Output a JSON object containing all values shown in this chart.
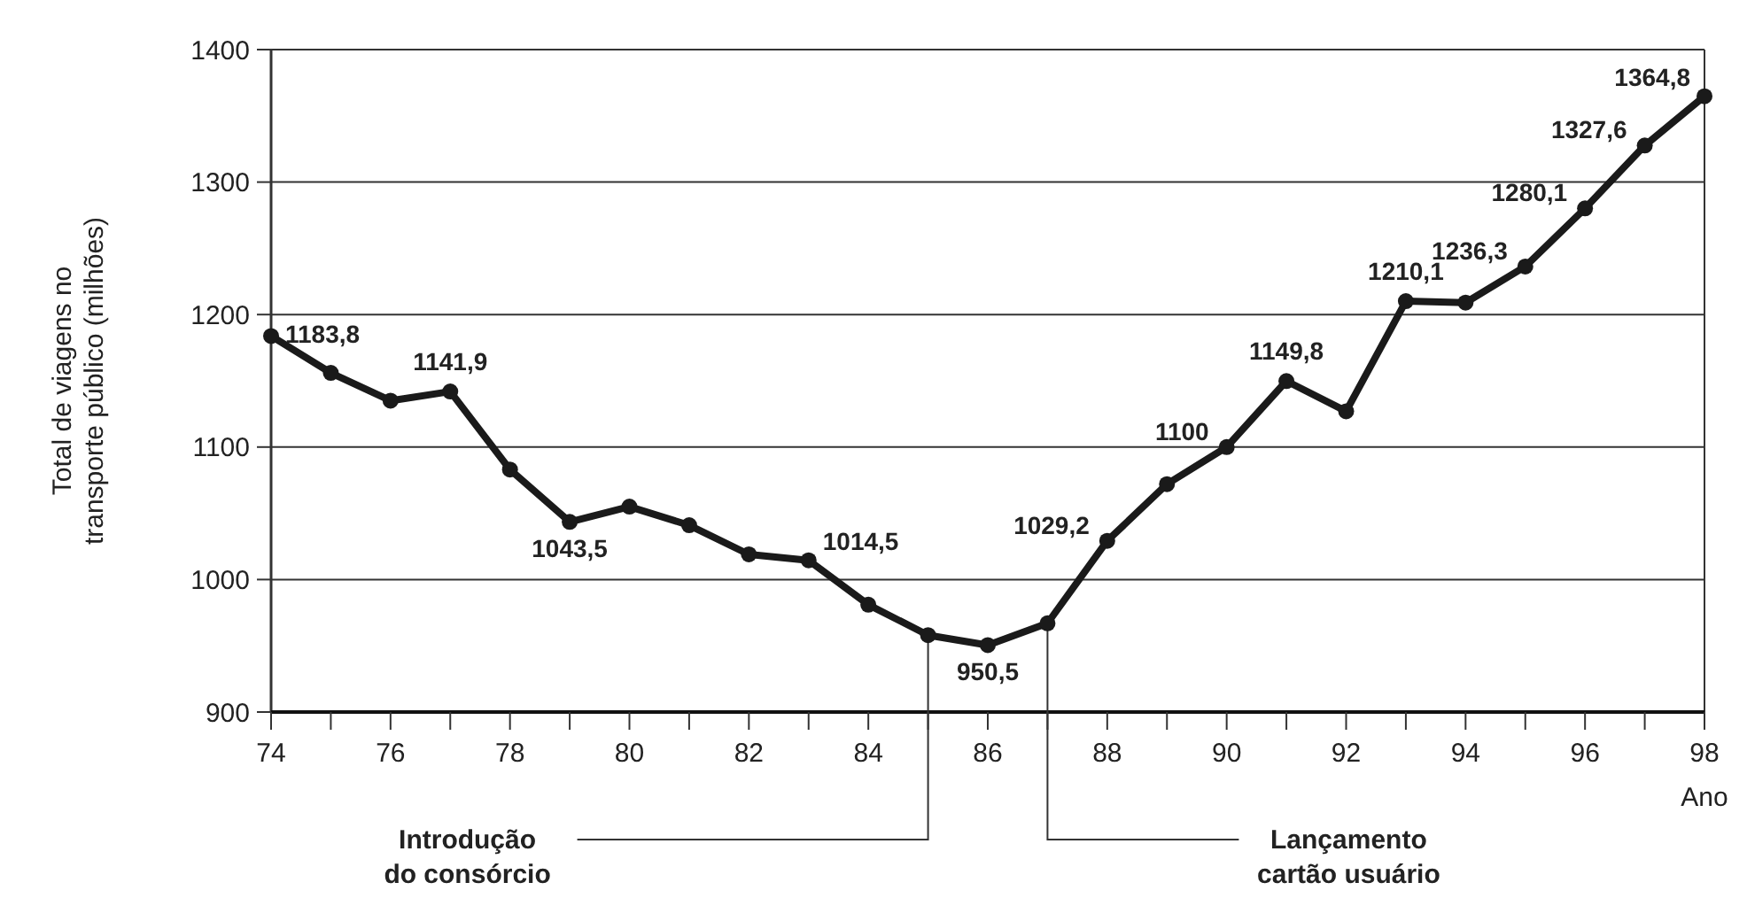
{
  "chart_data": {
    "type": "line",
    "ylabel": "Total de viagens no transporte público (milhões)",
    "xlabel": "Ano",
    "x": [
      74,
      75,
      76,
      77,
      78,
      79,
      80,
      81,
      82,
      83,
      84,
      85,
      86,
      87,
      88,
      89,
      90,
      91,
      92,
      93,
      94,
      95,
      96,
      97,
      98
    ],
    "series": [
      {
        "color": "#1a1a1a",
        "values": [
          1183.8,
          1156,
          1135,
          1141.9,
          1083,
          1043.5,
          1055,
          1041,
          1019,
          1014.5,
          981,
          958,
          950.5,
          967,
          1029.2,
          1072,
          1100,
          1149.8,
          1127,
          1210.1,
          1209,
          1236.3,
          1280.1,
          1327.6,
          1364.8
        ],
        "value_labels": [
          "1183,8",
          null,
          null,
          "1141,9",
          null,
          "1043,5",
          null,
          null,
          null,
          "1014,5",
          null,
          null,
          "950,5",
          null,
          "1029,2",
          null,
          "1100",
          "1149,8",
          null,
          "1210,1",
          null,
          "1236,3",
          "1280,1",
          "1327,6",
          "1364,8"
        ]
      }
    ],
    "xlim": [
      74,
      98
    ],
    "xticks": [
      74,
      76,
      78,
      80,
      82,
      84,
      86,
      88,
      90,
      92,
      94,
      96,
      98
    ],
    "ylim": [
      900,
      1400
    ],
    "yticks": [
      900,
      1000,
      1100,
      1200,
      1300,
      1400
    ],
    "grid": "y",
    "marker": "circle",
    "line_style": "solid",
    "ref_lines": [
      {
        "axis": "x",
        "value": 85,
        "label": "Introdução do consórcio",
        "color": "#333333"
      },
      {
        "axis": "x",
        "value": 87,
        "label": "Lançamento cartão usuário",
        "color": "#333333"
      }
    ]
  }
}
